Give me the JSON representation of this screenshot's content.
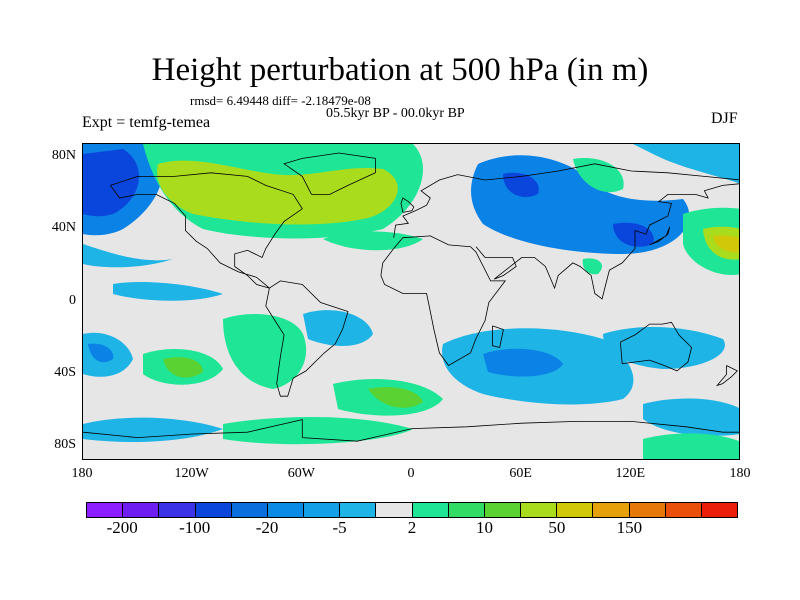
{
  "title": "Height perturbation at 500 hPa (in m)",
  "stats": "rmsd= 6.49448 diff= -2.18479e-08",
  "subtitle": "05.5kyr BP - 00.0kyr BP",
  "expt": "Expt = temfg-temea",
  "season": "DJF",
  "map": {
    "projection": "cylindrical-equidistant",
    "lon_range": [
      -180,
      180
    ],
    "lat_range": [
      -88,
      88
    ],
    "lat_labels": [
      "80N",
      "40N",
      "0",
      "40S",
      "80S"
    ],
    "lat_values": [
      80,
      40,
      0,
      -40,
      -80
    ],
    "lon_labels": [
      "180",
      "120W",
      "60W",
      "0",
      "60E",
      "120E",
      "180"
    ],
    "lon_values": [
      -180,
      -120,
      -60,
      0,
      60,
      120,
      180
    ],
    "fill_colors": {
      "background": "#e6e6e6",
      "neg_strong": "#0a46dc",
      "neg_mid": "#0a82e6",
      "neg_weak": "#1eb4e6",
      "pos_weak": "#1ee696",
      "pos_mid": "#5ad232",
      "pos_strong": "#aadc1e",
      "pos_vstrong": "#d2c80a"
    },
    "coastline_color": "#000000"
  },
  "colorbar": {
    "colors": [
      "#8c1eff",
      "#6e1ef0",
      "#3c32e6",
      "#0a46dc",
      "#0a6edc",
      "#0a8ce6",
      "#14a0e6",
      "#1eb4e6",
      "#e6e6e6",
      "#1ee696",
      "#32dc64",
      "#5ad232",
      "#aadc1e",
      "#d2c80a",
      "#e6a00a",
      "#e6780a",
      "#eb500a",
      "#eb1e0a"
    ],
    "tick_labels": [
      "-200",
      "-100",
      "-20",
      "-5",
      "2",
      "10",
      "50",
      "150"
    ]
  }
}
